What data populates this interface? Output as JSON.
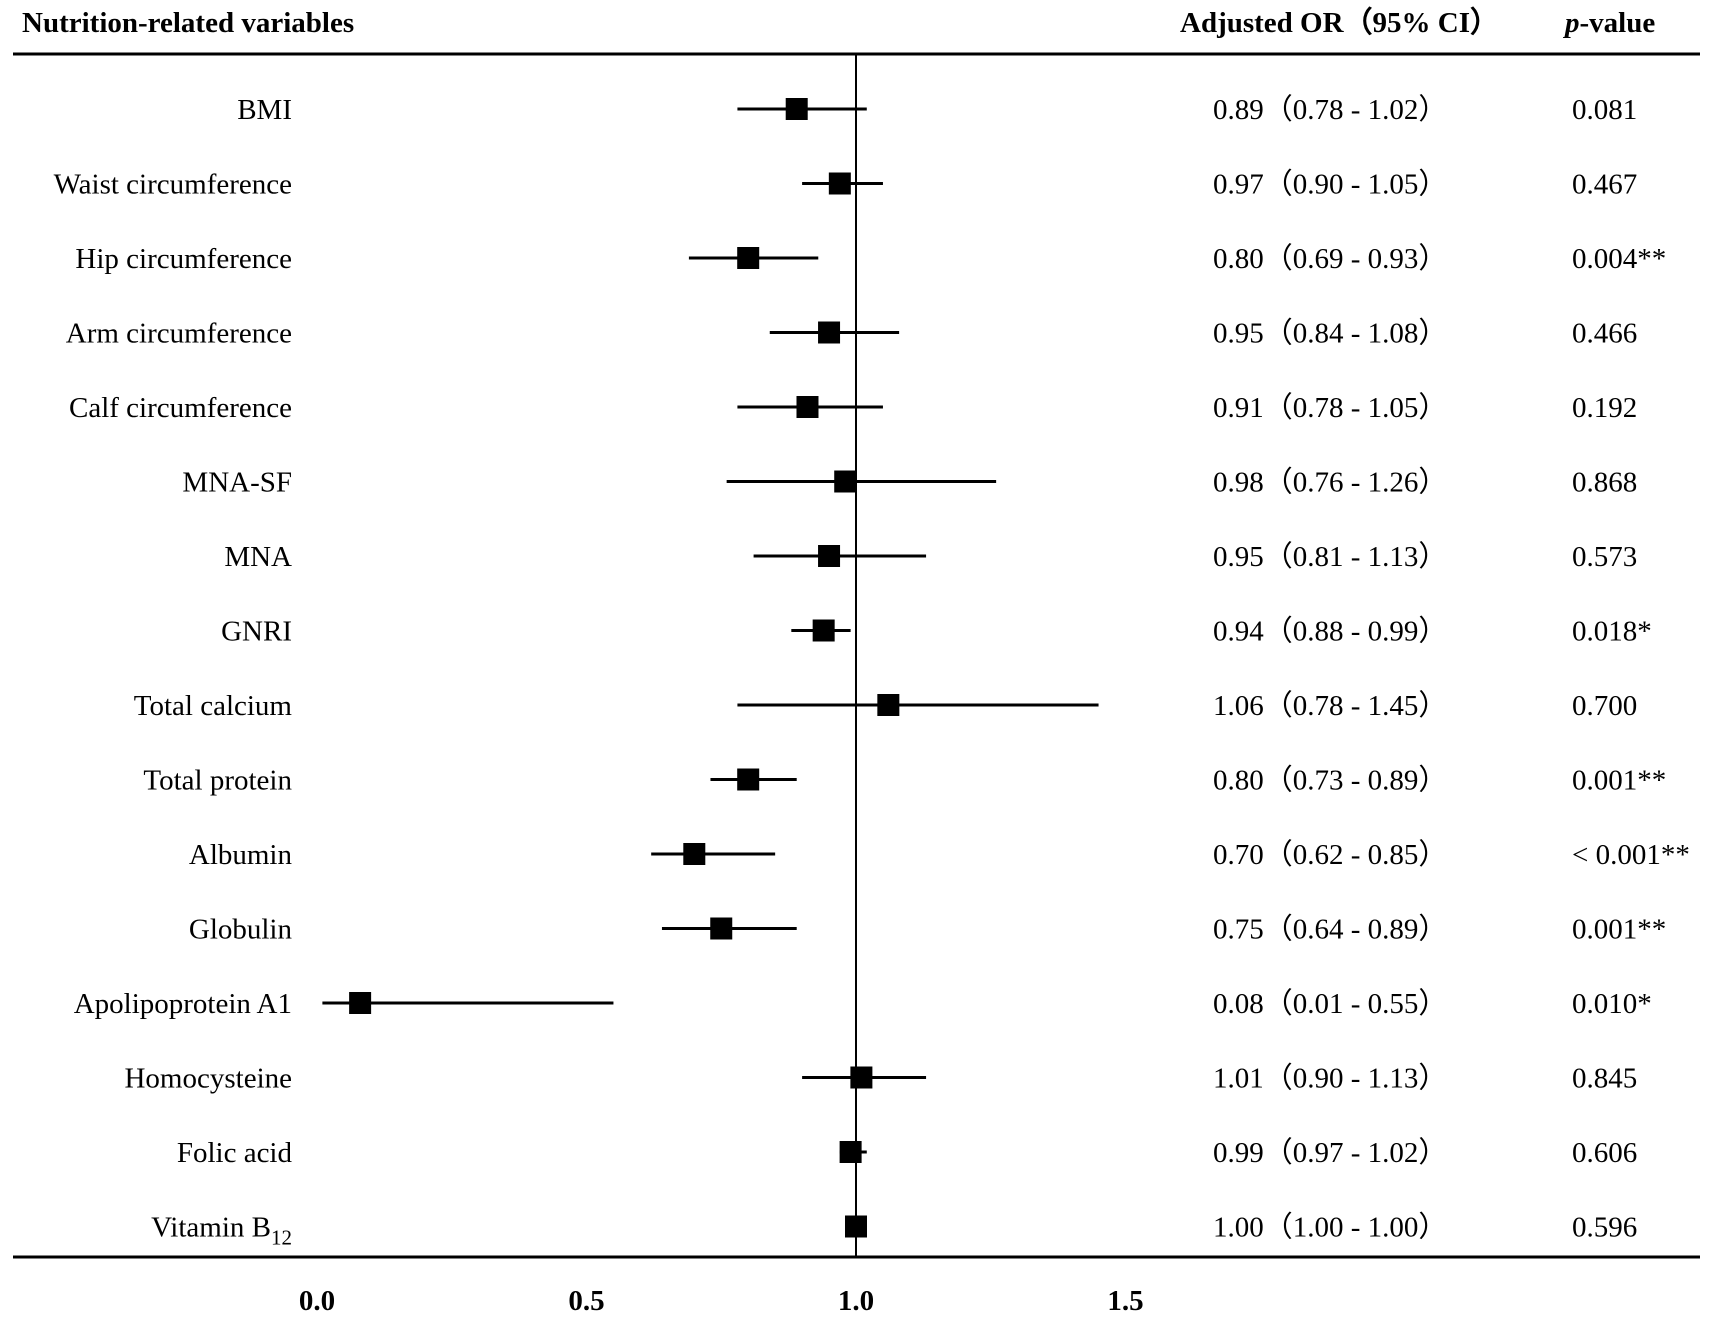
{
  "chart_data": {
    "type": "forest",
    "headers": {
      "variable": "Nutrition-related variables",
      "or": "Adjusted OR（95% CI）",
      "p_italic": "p",
      "p_rest": "-value"
    },
    "reference_line": 1.0,
    "xlim": [
      0.0,
      1.5
    ],
    "xticks": [
      "0.0",
      "0.5",
      "1.0",
      "1.5"
    ],
    "rows": [
      {
        "name": "BMI",
        "or": 0.89,
        "lo": 0.78,
        "hi": 1.02,
        "or_text": "0.89（0.78 - 1.02）",
        "p": "0.081"
      },
      {
        "name": "Waist circumference",
        "or": 0.97,
        "lo": 0.9,
        "hi": 1.05,
        "or_text": "0.97（0.90 - 1.05）",
        "p": "0.467"
      },
      {
        "name": "Hip circumference",
        "or": 0.8,
        "lo": 0.69,
        "hi": 0.93,
        "or_text": "0.80（0.69 - 0.93）",
        "p": "0.004**"
      },
      {
        "name": "Arm circumference",
        "or": 0.95,
        "lo": 0.84,
        "hi": 1.08,
        "or_text": "0.95（0.84 - 1.08）",
        "p": "0.466"
      },
      {
        "name": "Calf circumference",
        "or": 0.91,
        "lo": 0.78,
        "hi": 1.05,
        "or_text": "0.91（0.78 - 1.05）",
        "p": "0.192"
      },
      {
        "name": "MNA-SF",
        "or": 0.98,
        "lo": 0.76,
        "hi": 1.26,
        "or_text": "0.98（0.76 - 1.26）",
        "p": "0.868"
      },
      {
        "name": "MNA",
        "or": 0.95,
        "lo": 0.81,
        "hi": 1.13,
        "or_text": "0.95（0.81 - 1.13）",
        "p": "0.573"
      },
      {
        "name": "GNRI",
        "or": 0.94,
        "lo": 0.88,
        "hi": 0.99,
        "or_text": "0.94（0.88 - 0.99）",
        "p": "0.018*"
      },
      {
        "name": "Total calcium",
        "or": 1.06,
        "lo": 0.78,
        "hi": 1.45,
        "or_text": "1.06（0.78 - 1.45）",
        "p": "0.700"
      },
      {
        "name": "Total protein",
        "or": 0.8,
        "lo": 0.73,
        "hi": 0.89,
        "or_text": "0.80（0.73 - 0.89）",
        "p": "0.001**"
      },
      {
        "name": "Albumin",
        "or": 0.7,
        "lo": 0.62,
        "hi": 0.85,
        "or_text": "0.70（0.62 - 0.85）",
        "p": "< 0.001**"
      },
      {
        "name": "Globulin",
        "or": 0.75,
        "lo": 0.64,
        "hi": 0.89,
        "or_text": "0.75（0.64 - 0.89）",
        "p": "0.001**"
      },
      {
        "name": "Apolipoprotein A1",
        "or": 0.08,
        "lo": 0.01,
        "hi": 0.55,
        "or_text": "0.08（0.01 - 0.55）",
        "p": "0.010*"
      },
      {
        "name": "Homocysteine",
        "or": 1.01,
        "lo": 0.9,
        "hi": 1.13,
        "or_text": "1.01（0.90 - 1.13）",
        "p": "0.845"
      },
      {
        "name": "Folic acid",
        "or": 0.99,
        "lo": 0.97,
        "hi": 1.02,
        "or_text": "0.99（0.97 - 1.02）",
        "p": "0.606"
      },
      {
        "name": "Vitamin B",
        "sub": "12",
        "or": 1.0,
        "lo": 1.0,
        "hi": 1.0,
        "or_text": "1.00（1.00 - 1.00）",
        "p": "0.596"
      }
    ]
  }
}
